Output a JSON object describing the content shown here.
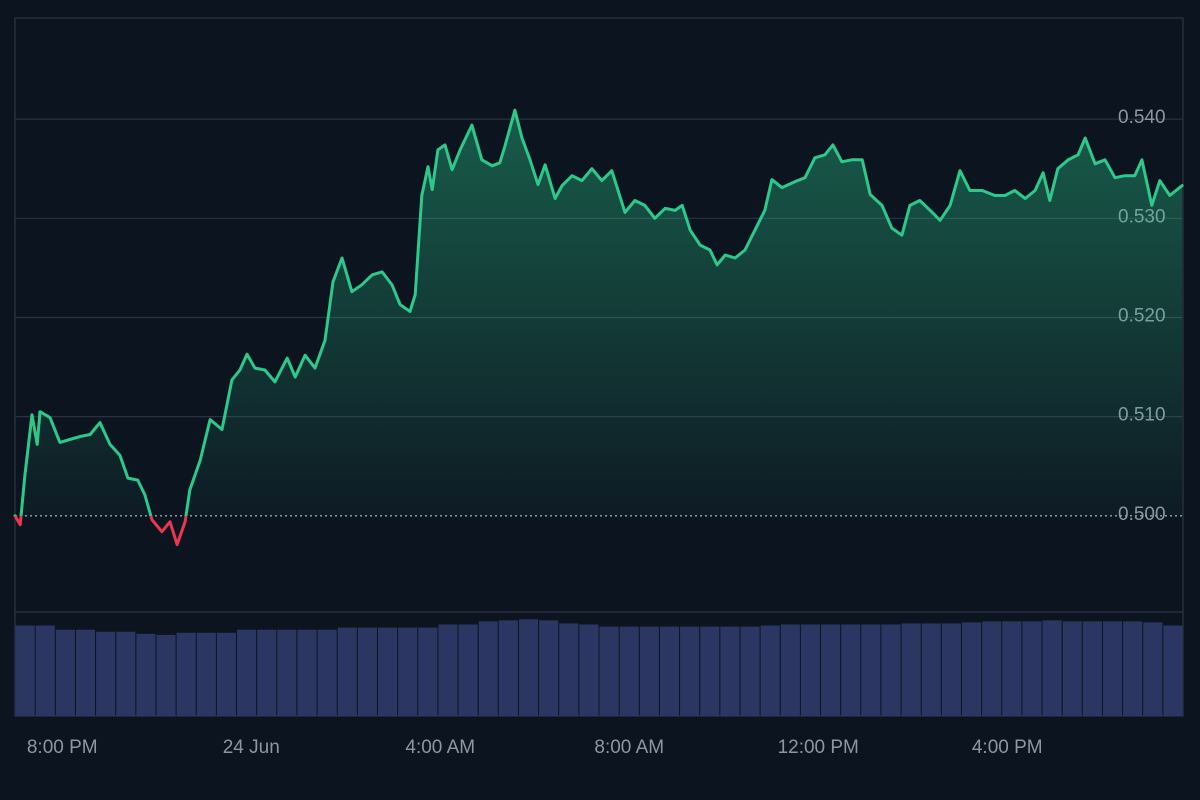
{
  "chart_data": {
    "type": "line",
    "baseline": 0.5,
    "color": "#2cc98a",
    "below_color": "#e8384f",
    "grid": true,
    "xlim": [
      19,
      43.72
    ],
    "ylim": [
      0.4903,
      0.5502
    ],
    "xticks": [
      {
        "value": 20,
        "label": "8:00 PM"
      },
      {
        "value": 24,
        "label": "24 Jun"
      },
      {
        "value": 28,
        "label": "4:00 AM"
      },
      {
        "value": 32,
        "label": "8:00 AM"
      },
      {
        "value": 36,
        "label": "12:00 PM"
      },
      {
        "value": 40,
        "label": "4:00 PM"
      }
    ],
    "yticks": [
      {
        "value": 0.5,
        "label": "0.500"
      },
      {
        "value": 0.51,
        "label": "0.510"
      },
      {
        "value": 0.52,
        "label": "0.520"
      },
      {
        "value": 0.53,
        "label": "0.530"
      },
      {
        "value": 0.54,
        "label": "0.540"
      }
    ],
    "x": [
      19.0,
      19.11,
      19.21,
      19.36,
      19.47,
      19.53,
      19.74,
      19.95,
      20.16,
      20.38,
      20.59,
      20.8,
      21.01,
      21.22,
      21.39,
      21.6,
      21.75,
      21.9,
      22.11,
      22.28,
      22.43,
      22.6,
      22.7,
      22.92,
      23.13,
      23.38,
      23.59,
      23.76,
      23.91,
      24.08,
      24.29,
      24.5,
      24.76,
      24.93,
      25.14,
      25.35,
      25.56,
      25.73,
      25.92,
      26.13,
      26.34,
      26.56,
      26.77,
      26.98,
      27.15,
      27.36,
      27.47,
      27.61,
      27.74,
      27.83,
      27.95,
      28.1,
      28.25,
      28.42,
      28.67,
      28.88,
      29.1,
      29.26,
      29.37,
      29.58,
      29.73,
      29.9,
      30.07,
      30.22,
      30.43,
      30.58,
      30.79,
      31.0,
      31.21,
      31.42,
      31.63,
      31.91,
      32.12,
      32.33,
      32.54,
      32.76,
      32.97,
      33.12,
      33.29,
      33.5,
      33.71,
      33.86,
      34.03,
      34.24,
      34.45,
      34.66,
      34.87,
      35.02,
      35.23,
      35.51,
      35.72,
      35.93,
      36.14,
      36.31,
      36.5,
      36.71,
      36.93,
      37.1,
      37.35,
      37.56,
      37.77,
      37.94,
      38.15,
      38.37,
      38.58,
      38.79,
      39.0,
      39.21,
      39.47,
      39.74,
      39.95,
      40.16,
      40.38,
      40.59,
      40.76,
      40.9,
      41.07,
      41.29,
      41.5,
      41.65,
      41.86,
      42.07,
      42.28,
      42.49,
      42.7,
      42.85,
      43.06,
      43.23,
      43.44,
      43.7
    ],
    "values": [
      0.5,
      0.4991,
      0.5041,
      0.5102,
      0.5072,
      0.5105,
      0.5099,
      0.5074,
      0.5077,
      0.508,
      0.5082,
      0.5094,
      0.5072,
      0.5061,
      0.5038,
      0.5036,
      0.5021,
      0.4996,
      0.4984,
      0.4994,
      0.4971,
      0.4994,
      0.5026,
      0.5056,
      0.5097,
      0.5087,
      0.5137,
      0.5147,
      0.5163,
      0.5149,
      0.5147,
      0.5135,
      0.5159,
      0.514,
      0.5162,
      0.5149,
      0.5177,
      0.5236,
      0.526,
      0.5226,
      0.5233,
      0.5243,
      0.5246,
      0.5233,
      0.5213,
      0.5206,
      0.5223,
      0.5323,
      0.5352,
      0.5329,
      0.5369,
      0.5374,
      0.5349,
      0.5369,
      0.5394,
      0.5359,
      0.5353,
      0.5356,
      0.5373,
      0.5409,
      0.5381,
      0.5359,
      0.5334,
      0.5354,
      0.532,
      0.5333,
      0.5343,
      0.5338,
      0.535,
      0.5338,
      0.5348,
      0.5306,
      0.5318,
      0.5313,
      0.53,
      0.531,
      0.5308,
      0.5313,
      0.5288,
      0.5273,
      0.5268,
      0.5253,
      0.5263,
      0.526,
      0.5268,
      0.5288,
      0.5308,
      0.5339,
      0.5331,
      0.5337,
      0.5341,
      0.5361,
      0.5364,
      0.5374,
      0.5357,
      0.5359,
      0.5359,
      0.5324,
      0.5313,
      0.529,
      0.5283,
      0.5313,
      0.5318,
      0.5308,
      0.5298,
      0.5313,
      0.5348,
      0.5328,
      0.5328,
      0.5323,
      0.5323,
      0.5328,
      0.532,
      0.5328,
      0.5346,
      0.5318,
      0.535,
      0.5359,
      0.5364,
      0.5381,
      0.5355,
      0.5359,
      0.5341,
      0.5343,
      0.5343,
      0.5359,
      0.5313,
      0.5338,
      0.5323,
      0.5333
    ],
    "volume": {
      "color": "#2b3663",
      "ylim": [
        0,
        100
      ],
      "values": [
        87,
        87,
        83,
        83,
        81,
        81,
        79,
        78,
        80,
        80,
        80,
        83,
        83,
        83,
        83,
        83,
        85,
        85,
        85,
        85,
        85,
        88,
        88,
        91,
        92,
        93,
        92,
        89,
        88,
        86,
        86,
        86,
        86,
        86,
        86,
        86,
        86,
        87,
        88,
        88,
        88,
        88,
        88,
        88,
        89,
        89,
        89,
        90,
        91,
        91,
        91,
        92,
        91,
        91,
        91,
        91,
        90,
        87
      ]
    }
  }
}
